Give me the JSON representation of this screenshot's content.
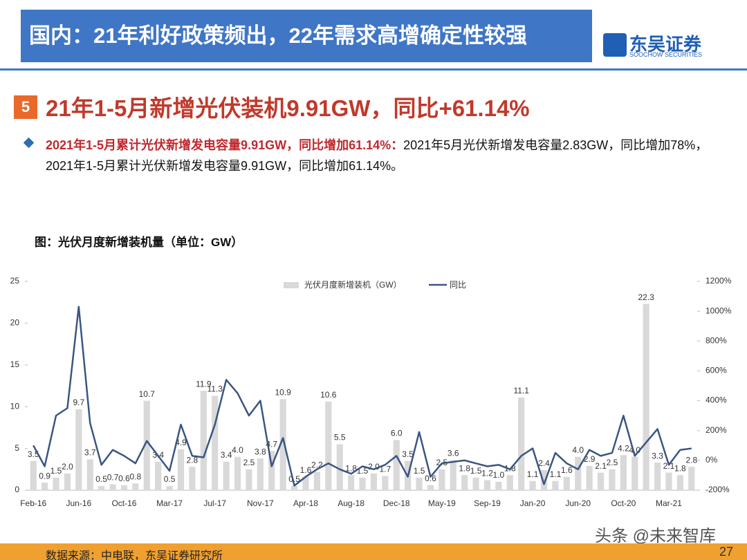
{
  "header": {
    "title": "国内：21年利好政策频出，22年需求高增确定性较强",
    "logo_cn": "东吴证券",
    "logo_en": "SOOCHOW SECURITIES"
  },
  "section": {
    "number": "5",
    "title": "21年1-5月新增光伏装机9.91GW，同比+61.14%"
  },
  "bullet": {
    "highlight": "2021年1-5月累计光伏新增发电容量9.91GW，同比增加61.14%：",
    "text": "2021年5月光伏新增发电容量2.83GW，同比增加78%，2021年1-5月累计光伏新增发电容量9.91GW，同比增加61.14%。"
  },
  "chart_data": {
    "type": "bar",
    "title": "图：光伏月度新增装机量（单位：GW）",
    "categories": [
      "Feb-16",
      null,
      null,
      null,
      "Jun-16",
      null,
      null,
      null,
      "Oct-16",
      null,
      null,
      null,
      "Mar-17",
      null,
      null,
      null,
      "Jul-17",
      null,
      null,
      null,
      "Nov-17",
      null,
      null,
      null,
      "Apr-18",
      null,
      null,
      null,
      "Aug-18",
      null,
      null,
      null,
      "Dec-18",
      null,
      null,
      null,
      "May-19",
      null,
      null,
      null,
      "Sep-19",
      null,
      null,
      null,
      "Jan-20",
      null,
      null,
      null,
      "Jun-20",
      null,
      null,
      null,
      "Oct-20",
      null,
      null,
      null,
      "Mar-21",
      null,
      null
    ],
    "series": [
      {
        "name": "光伏月度新增装机（GW）",
        "type": "bar",
        "color": "#d9d9d9",
        "values": [
          3.5,
          0.9,
          1.5,
          2.0,
          9.7,
          3.7,
          0.5,
          0.7,
          0.6,
          0.8,
          10.7,
          3.4,
          0.5,
          4.9,
          2.8,
          11.9,
          11.3,
          3.4,
          4.0,
          2.5,
          3.8,
          4.7,
          10.9,
          0.5,
          1.6,
          2.2,
          10.6,
          5.5,
          1.8,
          1.5,
          2.0,
          1.7,
          6.0,
          3.5,
          1.5,
          0.6,
          2.5,
          3.6,
          1.8,
          1.5,
          1.2,
          1.0,
          1.8,
          11.1,
          1.1,
          2.4,
          1.1,
          1.6,
          4.0,
          2.9,
          2.1,
          2.5,
          4.2,
          4.0,
          22.3,
          3.3,
          2.1,
          1.8,
          2.8
        ],
        "value_labels": [
          "3.5",
          "0.9",
          "1.5",
          "2.0",
          "9.7",
          "3.7",
          "0.5",
          "0.7",
          "0.6",
          "0.8",
          "10.7",
          "3.4",
          "0.5",
          "4.9",
          "2.8",
          "11.9",
          "11.3",
          "3.4",
          "4.0",
          "2.5",
          "3.8",
          "4.7",
          "10.9",
          "0.5",
          "1.6",
          "2.2",
          "10.6",
          "5.5",
          "1.8",
          "1.5",
          "2.0",
          "1.7",
          "6.0",
          "3.5",
          "1.5",
          "0.6",
          "2.5",
          "3.6",
          "1.8",
          "1.5",
          "1.2",
          "1.0",
          "1.8",
          "11.1",
          "1.1",
          "2.4",
          "1.1",
          "1.6",
          "4.0",
          "2.9",
          "2.1",
          "2.5",
          "4.2",
          "4.0",
          "22.3",
          "3.3",
          "2.1",
          "1.8",
          "2.8"
        ]
      },
      {
        "name": "同比",
        "type": "line",
        "axis": "y2",
        "color": "#3a5583",
        "values": [
          100,
          -40,
          300,
          350,
          1030,
          250,
          -30,
          70,
          30,
          -20,
          130,
          30,
          -70,
          240,
          30,
          20,
          240,
          540,
          450,
          300,
          400,
          -40,
          150,
          -170,
          -110,
          -60,
          -20,
          -60,
          -90,
          -40,
          -60,
          -30,
          30,
          -110,
          190,
          -110,
          -20,
          -10,
          0,
          -20,
          -40,
          -30,
          -60,
          30,
          80,
          -160,
          50,
          -20,
          -60,
          70,
          30,
          50,
          300,
          30,
          120,
          210,
          -30,
          70,
          80
        ]
      }
    ],
    "ylim": [
      0,
      25
    ],
    "yticks": [
      0,
      5,
      10,
      15,
      20,
      25
    ],
    "y2lim": [
      -200,
      1200
    ],
    "y2ticks": [
      {
        "value": -200,
        "label": "-200%"
      },
      {
        "value": 0,
        "label": "0%"
      },
      {
        "value": 200,
        "label": "200%"
      },
      {
        "value": 400,
        "label": "400%"
      },
      {
        "value": 600,
        "label": "600%"
      },
      {
        "value": 800,
        "label": "800%"
      },
      {
        "value": 1000,
        "label": "1000%"
      },
      {
        "value": 1200,
        "label": "1200%"
      }
    ],
    "legend": "top"
  },
  "footer": {
    "source": "数据来源：中电联，东吴证券研究所",
    "page": "27",
    "watermark": "头条 @未来智库"
  }
}
